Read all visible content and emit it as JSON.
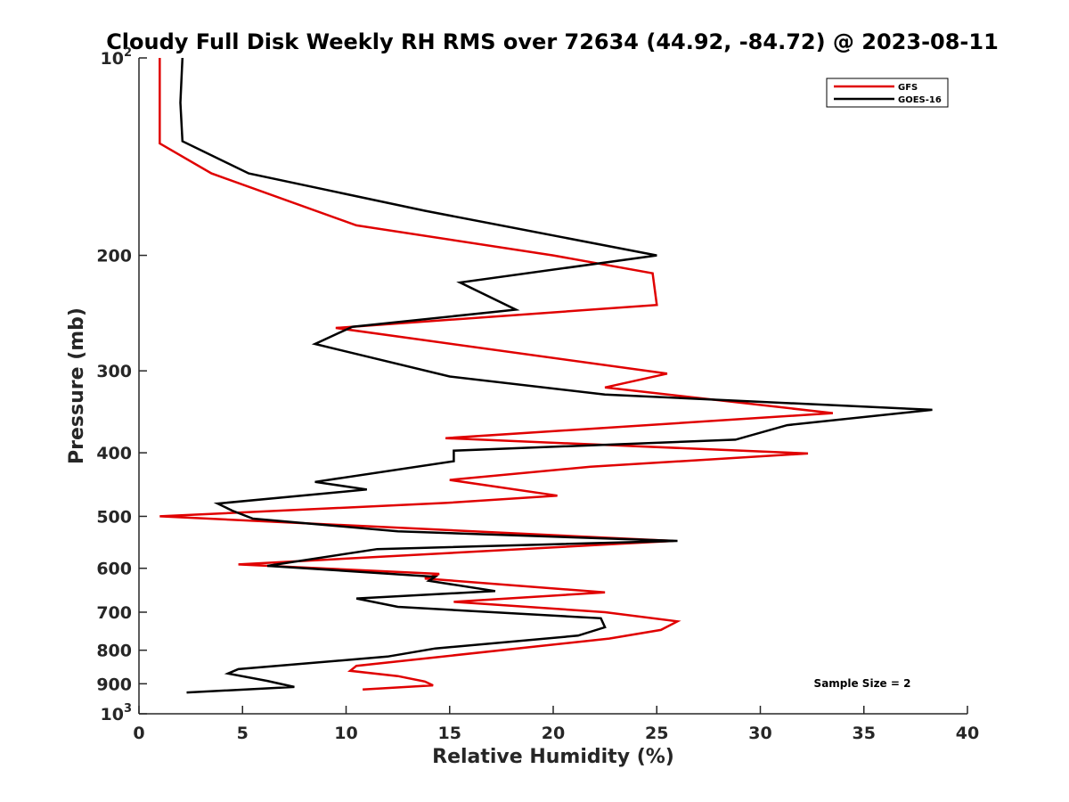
{
  "chart_data": {
    "type": "line",
    "title": "Cloudy Full Disk Weekly RH RMS over 72634 (44.92, -84.72) @ 2023-08-11",
    "xlabel": "Relative Humidity (%)",
    "ylabel": "Pressure (mb)",
    "xlim": [
      0,
      40
    ],
    "ylim": [
      100,
      1000
    ],
    "yscale": "log",
    "y_reversed": true,
    "grid": false,
    "legend_position": "top-right",
    "x_ticks": [
      "0",
      "5",
      "10",
      "15",
      "20",
      "25",
      "30",
      "35",
      "40"
    ],
    "y_ticks": [
      {
        "value": 100,
        "label": "10",
        "sup": "2"
      },
      {
        "value": 200,
        "label": "200",
        "sup": ""
      },
      {
        "value": 300,
        "label": "300",
        "sup": ""
      },
      {
        "value": 400,
        "label": "400",
        "sup": ""
      },
      {
        "value": 500,
        "label": "500",
        "sup": ""
      },
      {
        "value": 600,
        "label": "600",
        "sup": ""
      },
      {
        "value": 700,
        "label": "700",
        "sup": ""
      },
      {
        "value": 800,
        "label": "800",
        "sup": ""
      },
      {
        "value": 900,
        "label": "900",
        "sup": ""
      },
      {
        "value": 1000,
        "label": "10",
        "sup": "3"
      }
    ],
    "series": [
      {
        "name": "GFS",
        "color": "#e00000",
        "points": [
          [
            1.0,
            100
          ],
          [
            1.0,
            125
          ],
          [
            1.0,
            135
          ],
          [
            3.5,
            150
          ],
          [
            10.5,
            180
          ],
          [
            20.0,
            200
          ],
          [
            24.8,
            213
          ],
          [
            25.0,
            238
          ],
          [
            9.5,
            258
          ],
          [
            25.5,
            303
          ],
          [
            22.5,
            318
          ],
          [
            33.5,
            348
          ],
          [
            14.8,
            380
          ],
          [
            32.3,
            401
          ],
          [
            21.8,
            420
          ],
          [
            15.0,
            440
          ],
          [
            20.2,
            465
          ],
          [
            14.8,
            477
          ],
          [
            1.0,
            500
          ],
          [
            25.8,
            545
          ],
          [
            4.8,
            592
          ],
          [
            14.5,
            612
          ],
          [
            13.8,
            622
          ],
          [
            22.5,
            653
          ],
          [
            15.2,
            675
          ],
          [
            22.5,
            700
          ],
          [
            26.0,
            723
          ],
          [
            25.2,
            745
          ],
          [
            22.7,
            768
          ],
          [
            10.5,
            845
          ],
          [
            10.2,
            860
          ],
          [
            12.5,
            876
          ],
          [
            13.8,
            893
          ],
          [
            14.2,
            905
          ],
          [
            10.8,
            918
          ]
        ]
      },
      {
        "name": "GOES-16",
        "color": "#000000",
        "points": [
          [
            2.1,
            100
          ],
          [
            2.0,
            117
          ],
          [
            2.1,
            134
          ],
          [
            5.3,
            150
          ],
          [
            13.8,
            171
          ],
          [
            25.0,
            200
          ],
          [
            15.5,
            220
          ],
          [
            18.2,
            242
          ],
          [
            10.3,
            257
          ],
          [
            8.5,
            273
          ],
          [
            15.0,
            306
          ],
          [
            22.5,
            326
          ],
          [
            38.3,
            344
          ],
          [
            31.3,
            363
          ],
          [
            28.8,
            382
          ],
          [
            15.2,
            397
          ],
          [
            15.2,
            412
          ],
          [
            8.5,
            443
          ],
          [
            11.0,
            455
          ],
          [
            3.8,
            478
          ],
          [
            4.5,
            490
          ],
          [
            5.5,
            504
          ],
          [
            12.5,
            527
          ],
          [
            26.0,
            545
          ],
          [
            11.5,
            561
          ],
          [
            6.2,
            595
          ],
          [
            14.3,
            618
          ],
          [
            14.0,
            627
          ],
          [
            17.2,
            650
          ],
          [
            10.5,
            667
          ],
          [
            12.5,
            687
          ],
          [
            22.3,
            715
          ],
          [
            22.5,
            738
          ],
          [
            21.2,
            760
          ],
          [
            14.3,
            795
          ],
          [
            12.0,
            818
          ],
          [
            4.8,
            855
          ],
          [
            4.3,
            868
          ],
          [
            6.2,
            891
          ],
          [
            7.5,
            910
          ],
          [
            2.3,
            928
          ]
        ]
      }
    ],
    "annotation": "Sample Size = 2"
  }
}
